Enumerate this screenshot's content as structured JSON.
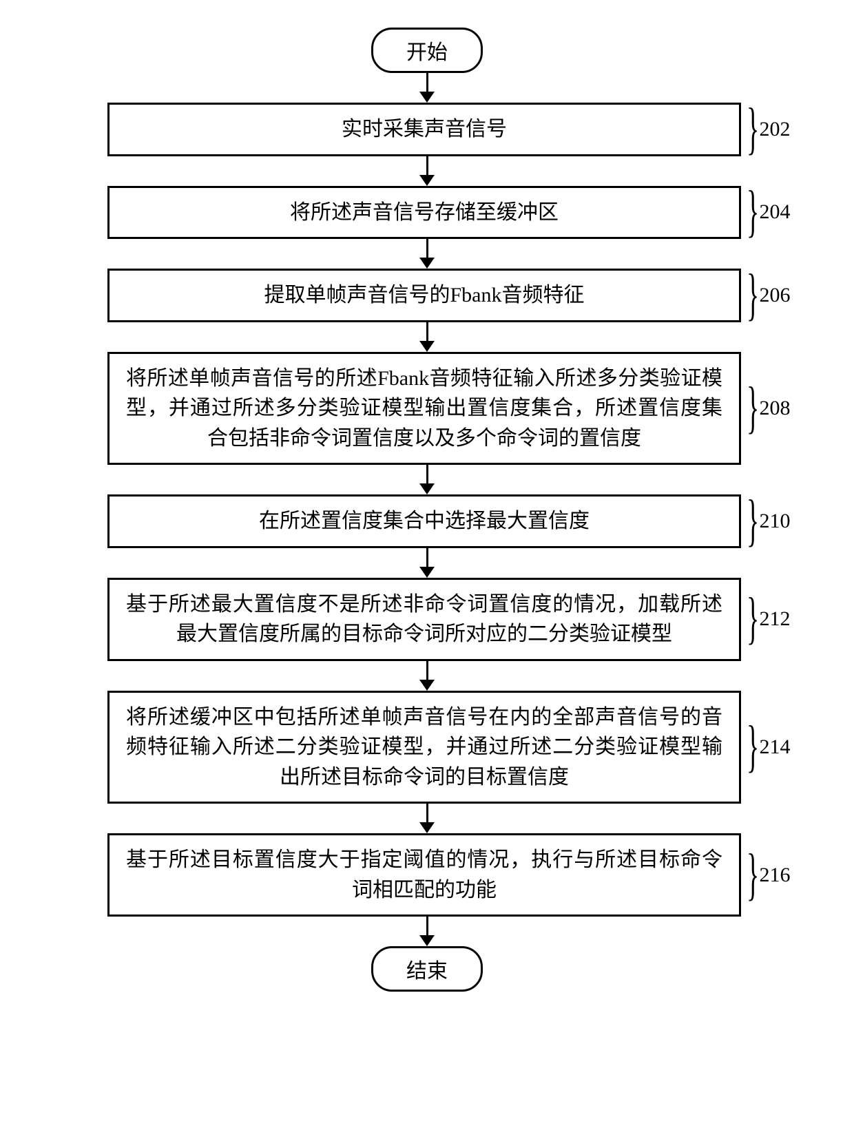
{
  "terminals": {
    "start": "开始",
    "end": "结束"
  },
  "steps": [
    {
      "num": "202",
      "text": "实时采集声音信号",
      "multi": false
    },
    {
      "num": "204",
      "text": "将所述声音信号存储至缓冲区",
      "multi": false
    },
    {
      "num": "206",
      "text": "提取单帧声音信号的Fbank音频特征",
      "multi": false
    },
    {
      "num": "208",
      "text": "将所述单帧声音信号的所述Fbank音频特征输入所述多分类验证模型，并通过所述多分类验证模型输出置信度集合，所述置信度集合包括非命令词置信度以及多个命令词的置信度",
      "multi": true
    },
    {
      "num": "210",
      "text": "在所述置信度集合中选择最大置信度",
      "multi": false
    },
    {
      "num": "212",
      "text": "基于所述最大置信度不是所述非命令词置信度的情况，加载所述最大置信度所属的目标命令词所对应的二分类验证模型",
      "multi": true
    },
    {
      "num": "214",
      "text": "将所述缓冲区中包括所述单帧声音信号在内的全部声音信号的音频特征输入所述二分类验证模型，并通过所述二分类验证模型输出所述目标命令词的目标置信度",
      "multi": true
    },
    {
      "num": "216",
      "text": "基于所述目标置信度大于指定阈值的情况，执行与所述目标命令词相匹配的功能",
      "multi": true
    }
  ],
  "style": {
    "borderColor": "#000000",
    "background": "#ffffff",
    "fontSize": 30,
    "arrow": {
      "lineLength": 28,
      "headW": 22,
      "headH": 16
    }
  }
}
